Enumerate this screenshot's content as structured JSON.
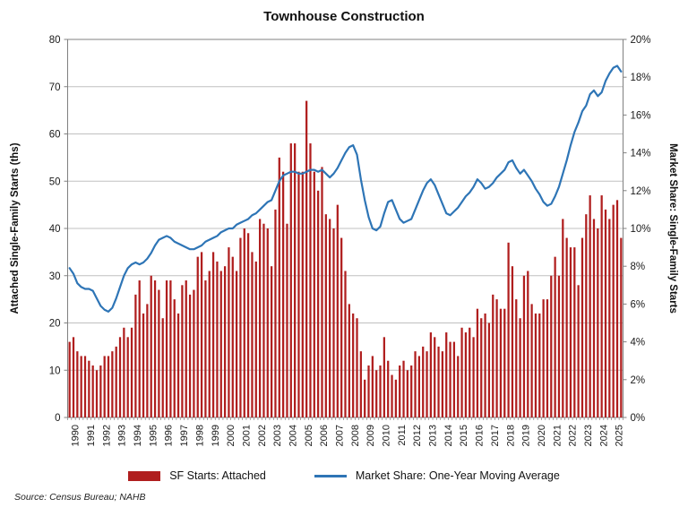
{
  "title": "Townhouse Construction",
  "source_note": "Source: Census Bureau; NAHB",
  "colors": {
    "bar": "#b01e1e",
    "line": "#2e75b6",
    "gridline": "#c0c0c0",
    "axis": "#808080",
    "text": "#1a1a1a"
  },
  "left_axis": {
    "title": "Attached Single-Family Starts (ths)",
    "min": 0,
    "max": 80,
    "step": 10,
    "ticks": [
      "0",
      "10",
      "20",
      "30",
      "40",
      "50",
      "60",
      "70",
      "80"
    ]
  },
  "right_axis": {
    "title": "Market Share: Single-Family Starts",
    "min": 0,
    "max": 20,
    "step": 2,
    "ticks": [
      "0%",
      "2%",
      "4%",
      "6%",
      "8%",
      "10%",
      "12%",
      "14%",
      "16%",
      "18%",
      "20%"
    ]
  },
  "legend": {
    "bar_label": "SF Starts: Attached",
    "line_label": "Market Share: One-Year Moving Average"
  },
  "chart_data": {
    "type": "bar",
    "note": "quarterly data 1990Q1-2025Q3; bars on left axis (thousands), line on right axis (percent, one-year moving average)",
    "frequency": "quarterly",
    "categories": [
      "1990",
      "1991",
      "1992",
      "1993",
      "1994",
      "1995",
      "1996",
      "1997",
      "1998",
      "1999",
      "2000",
      "2001",
      "2002",
      "2003",
      "2004",
      "2005",
      "2006",
      "2007",
      "2008",
      "2009",
      "2010",
      "2011",
      "2012",
      "2013",
      "2014",
      "2015",
      "2016",
      "2017",
      "2018",
      "2019",
      "2020",
      "2021",
      "2022",
      "2023",
      "2024",
      "2025"
    ],
    "xlabel": "",
    "ylabel_left": "Attached Single-Family Starts (ths)",
    "ylabel_right": "Market Share: Single-Family Starts",
    "ylim_left": [
      0,
      80
    ],
    "ylim_right": [
      0,
      20
    ],
    "grid": true,
    "legend_position": "bottom",
    "series": [
      {
        "name": "SF Starts: Attached",
        "type": "bar",
        "axis": "left",
        "color": "#b01e1e",
        "values": [
          16,
          17,
          14,
          13,
          13,
          12,
          11,
          10,
          11,
          13,
          13,
          14,
          15,
          17,
          19,
          17,
          19,
          26,
          29,
          22,
          24,
          30,
          29,
          27,
          21,
          29,
          29,
          25,
          22,
          28,
          29,
          26,
          27,
          34,
          35,
          29,
          31,
          35,
          33,
          31,
          32,
          36,
          34,
          31,
          38,
          40,
          39,
          35,
          33,
          42,
          41,
          40,
          32,
          44,
          55,
          52,
          41,
          58,
          58,
          52,
          52,
          67,
          58,
          52,
          48,
          53,
          43,
          42,
          40,
          45,
          38,
          31,
          24,
          22,
          21,
          14,
          8,
          11,
          13,
          10,
          11,
          17,
          12,
          9,
          8,
          11,
          12,
          10,
          11,
          14,
          13,
          15,
          14,
          18,
          17,
          15,
          14,
          18,
          16,
          16,
          13,
          19,
          18,
          19,
          17,
          23,
          21,
          22,
          20,
          26,
          25,
          23,
          23,
          37,
          32,
          25,
          21,
          30,
          31,
          24,
          22,
          22,
          25,
          25,
          30,
          34,
          30,
          42,
          38,
          36,
          36,
          28,
          38,
          43,
          47,
          42,
          40,
          47,
          44,
          42,
          45,
          46,
          38
        ]
      },
      {
        "name": "Market Share: One-Year Moving Average",
        "type": "line",
        "axis": "right",
        "color": "#2e75b6",
        "values": [
          7.9,
          7.6,
          7.1,
          6.9,
          6.8,
          6.8,
          6.7,
          6.3,
          5.9,
          5.7,
          5.6,
          5.8,
          6.3,
          6.9,
          7.5,
          7.9,
          8.1,
          8.2,
          8.1,
          8.2,
          8.4,
          8.7,
          9.1,
          9.4,
          9.5,
          9.6,
          9.5,
          9.3,
          9.2,
          9.1,
          9.0,
          8.9,
          8.9,
          9.0,
          9.1,
          9.3,
          9.4,
          9.5,
          9.6,
          9.8,
          9.9,
          10.0,
          10.0,
          10.2,
          10.3,
          10.4,
          10.5,
          10.7,
          10.8,
          11.0,
          11.2,
          11.4,
          11.5,
          12.0,
          12.5,
          12.8,
          12.9,
          13.0,
          13.0,
          12.9,
          12.9,
          13.0,
          13.1,
          13.1,
          13.0,
          13.1,
          12.9,
          12.7,
          12.9,
          13.2,
          13.6,
          14.0,
          14.3,
          14.4,
          13.9,
          12.6,
          11.5,
          10.6,
          10.0,
          9.9,
          10.1,
          10.8,
          11.4,
          11.5,
          11.0,
          10.5,
          10.3,
          10.4,
          10.5,
          11.0,
          11.5,
          12.0,
          12.4,
          12.6,
          12.3,
          11.8,
          11.3,
          10.8,
          10.7,
          10.9,
          11.1,
          11.4,
          11.7,
          11.9,
          12.2,
          12.6,
          12.4,
          12.1,
          12.2,
          12.4,
          12.7,
          12.9,
          13.1,
          13.5,
          13.6,
          13.2,
          12.9,
          13.1,
          12.8,
          12.5,
          12.1,
          11.8,
          11.4,
          11.2,
          11.3,
          11.7,
          12.2,
          12.9,
          13.6,
          14.4,
          15.1,
          15.6,
          16.2,
          16.5,
          17.1,
          17.3,
          17.0,
          17.2,
          17.8,
          18.2,
          18.5,
          18.6,
          18.3
        ]
      }
    ]
  }
}
